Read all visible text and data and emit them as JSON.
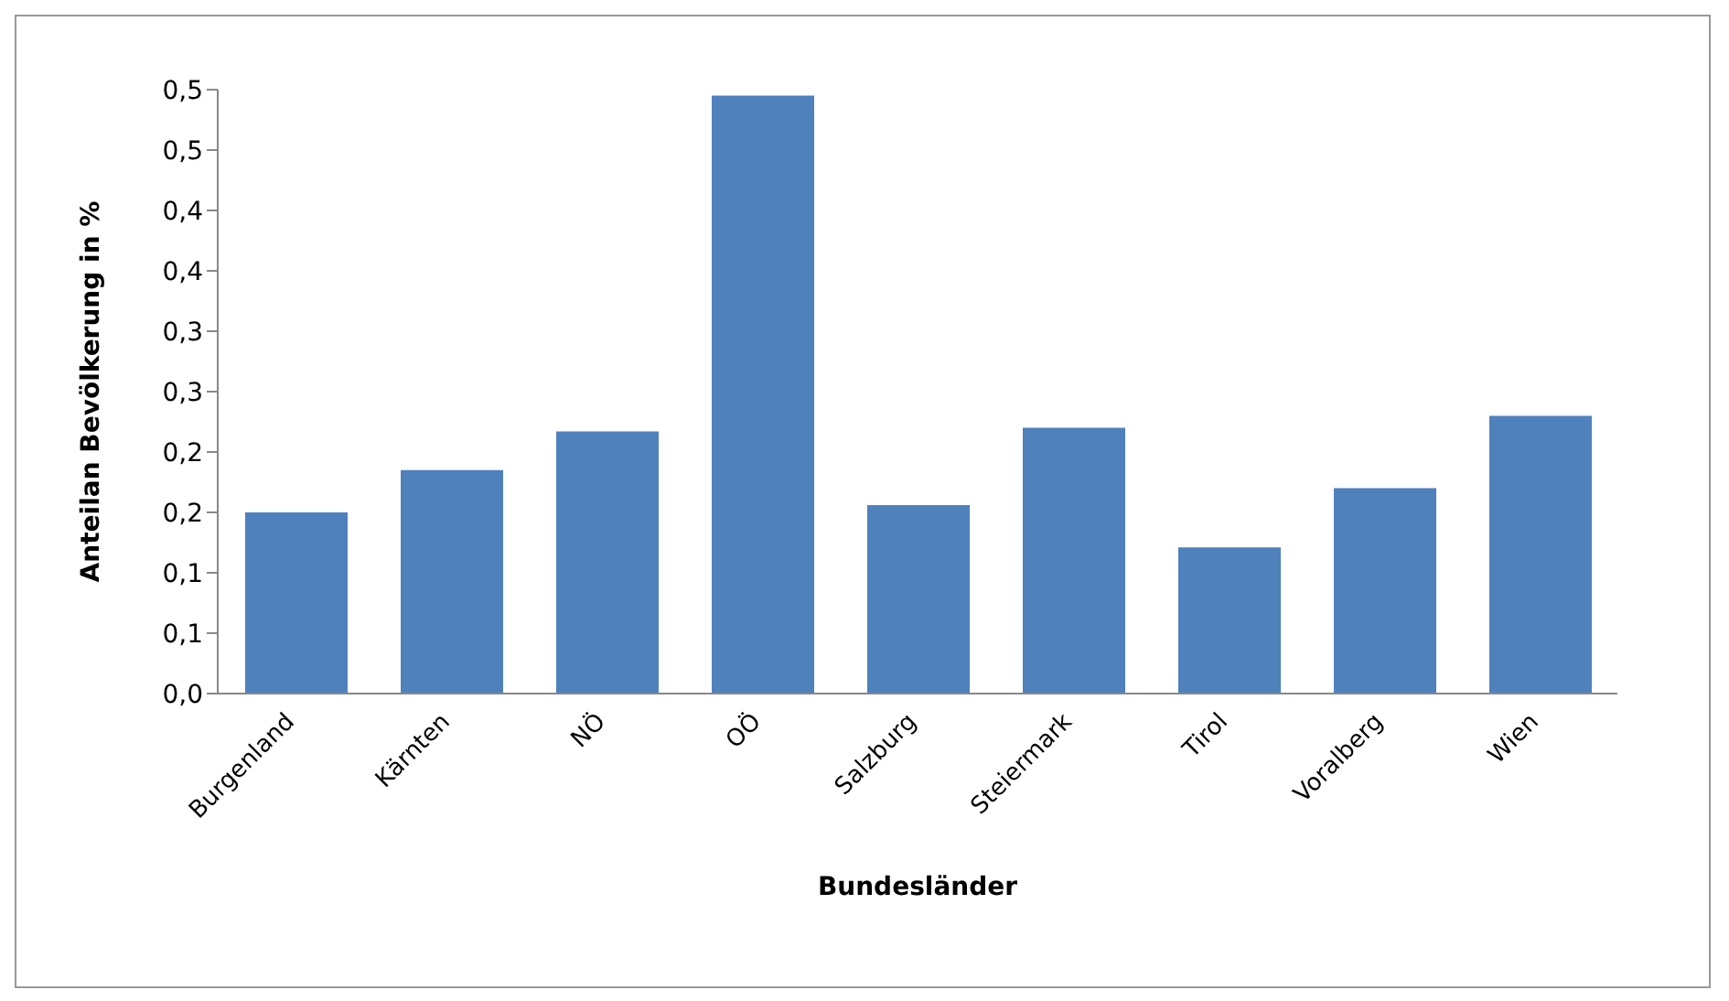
{
  "chart_data": {
    "type": "bar",
    "xlabel": "Bundesländer",
    "ylabel": "Anteilan Bevölkerung in %",
    "categories": [
      "Burgenland",
      "Kärnten",
      "NÖ",
      "OÖ",
      "Salzburg",
      "Steiermark",
      "Tirol",
      "Voralberg",
      "Wien"
    ],
    "values": [
      0.15,
      0.185,
      0.217,
      0.495,
      0.156,
      0.22,
      0.121,
      0.17,
      0.23
    ],
    "color": "#4f81bd",
    "ylim": [
      0,
      0.5
    ],
    "yticks": [
      {
        "value": 0,
        "label": "0,0"
      },
      {
        "value": 0.05,
        "label": "0,1"
      },
      {
        "value": 0.1,
        "label": "0,1"
      },
      {
        "value": 0.15,
        "label": "0,2"
      },
      {
        "value": 0.2,
        "label": "0,2"
      },
      {
        "value": 0.25,
        "label": "0,3"
      },
      {
        "value": 0.3,
        "label": "0,3"
      },
      {
        "value": 0.35,
        "label": "0,4"
      },
      {
        "value": 0.4,
        "label": "0,4"
      },
      {
        "value": 0.45,
        "label": "0,5"
      },
      {
        "value": 0.5,
        "label": "0,5"
      }
    ],
    "grid": false,
    "legend": false
  }
}
